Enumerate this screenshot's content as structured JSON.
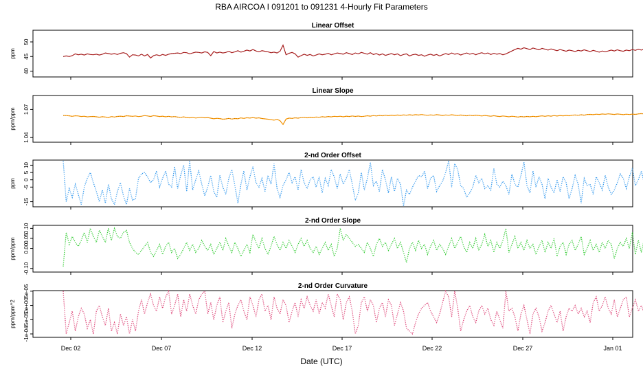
{
  "title": "RBA   AIRCOA I   091201 to 091231   4-Hourly Fit Parameters",
  "xlabel": "Date (UTC)",
  "x_ticks": [
    "Dec 02",
    "Dec 07",
    "Dec 12",
    "Dec 17",
    "Dec 22",
    "Dec 27",
    "Jan 01"
  ],
  "chart_data": [
    {
      "type": "line",
      "title": "Linear Offset",
      "ylabel": "ppm",
      "yticks": [
        "40",
        "45",
        "50"
      ],
      "ytick_values": [
        40,
        45,
        50
      ],
      "ylim": [
        38,
        54
      ],
      "color": "#b22222",
      "style": "solid",
      "x_start": "2009-12-01 14:00",
      "x_end": "2010-01-01 00:00",
      "x_step_hours": 4,
      "values": [
        45.0,
        45.2,
        45.0,
        45.3,
        45.9,
        45.6,
        45.8,
        45.5,
        45.9,
        45.7,
        45.6,
        45.8,
        45.5,
        45.8,
        46.2,
        46.0,
        45.8,
        46.0,
        45.7,
        46.1,
        46.3,
        46.0,
        44.8,
        45.6,
        45.5,
        45.2,
        45.8,
        45.2,
        45.7,
        44.5,
        45.3,
        45.6,
        45.3,
        45.7,
        45.4,
        45.8,
        46.0,
        46.1,
        46.2,
        46.0,
        46.4,
        46.3,
        45.9,
        46.2,
        46.5,
        46.4,
        46.2,
        46.6,
        46.4,
        45.3,
        46.7,
        46.2,
        46.5,
        46.2,
        46.4,
        46.8,
        46.3,
        46.6,
        47.0,
        46.5,
        46.8,
        47.2,
        46.9,
        47.4,
        46.9,
        46.6,
        47.0,
        46.8,
        46.6,
        46.3,
        46.5,
        46.2,
        46.8,
        48.9,
        45.6,
        46.1,
        46.4,
        45.9,
        44.8,
        45.3,
        45.8,
        45.4,
        45.7,
        45.2,
        45.5,
        45.9,
        45.6,
        45.8,
        46.1,
        45.6,
        45.9,
        46.2,
        46.0,
        45.8,
        46.3,
        46.0,
        45.7,
        46.2,
        45.9,
        46.4,
        46.1,
        45.8,
        46.3,
        45.7,
        46.0,
        45.5,
        45.9,
        45.4,
        45.7,
        46.0,
        45.6,
        45.9,
        45.3,
        45.7,
        45.9,
        45.2,
        45.6,
        45.8,
        45.4,
        45.6,
        45.1,
        45.5,
        45.8,
        45.4,
        45.7,
        45.2,
        45.6,
        46.0,
        45.7,
        46.2,
        45.8,
        46.0,
        45.5,
        45.9,
        46.2,
        45.8,
        46.1,
        45.6,
        46.0,
        46.3,
        45.9,
        46.2,
        45.7,
        46.1,
        45.8,
        46.0,
        45.6,
        45.9,
        46.4,
        46.9,
        47.4,
        47.8,
        47.5,
        48.0,
        47.7,
        47.4,
        47.9,
        47.6,
        47.3,
        47.8,
        47.5,
        47.2,
        47.6,
        47.3,
        47.0,
        47.4,
        47.1,
        46.8,
        47.2,
        47.0,
        46.7,
        47.1,
        46.9,
        47.3,
        47.0,
        46.7,
        47.1,
        46.8,
        46.5,
        46.9,
        46.6,
        46.9,
        47.2,
        46.9,
        47.3,
        47.0,
        46.8,
        47.2,
        47.0,
        47.4,
        47.1,
        47.5,
        47.2,
        47.6,
        47.3,
        47.7,
        47.8,
        47.5,
        47.9,
        47.6,
        47.8,
        47.4,
        47.7,
        47.3,
        47.6,
        47.2,
        46.8,
        47.1,
        46.9
      ]
    },
    {
      "type": "line",
      "title": "Linear Slope",
      "ylabel": "ppm/ppm",
      "yticks": [
        "1.04",
        "1.07"
      ],
      "ytick_values": [
        1.04,
        1.07
      ],
      "ylim": [
        1.035,
        1.085
      ],
      "color": "#ff9900",
      "style": "solid",
      "x_start": "2009-12-01 14:00",
      "x_end": "2010-01-01 00:00",
      "x_step_hours": 4,
      "values": [
        1.0636,
        1.0635,
        1.0632,
        1.0627,
        1.0633,
        1.0631,
        1.0625,
        1.0628,
        1.0621,
        1.0624,
        1.0626,
        1.0622,
        1.0618,
        1.0623,
        1.062,
        1.0615,
        1.0624,
        1.062,
        1.0626,
        1.0629,
        1.0625,
        1.0633,
        1.063,
        1.0627,
        1.0631,
        1.0624,
        1.0628,
        1.0635,
        1.0631,
        1.0626,
        1.0634,
        1.063,
        1.0625,
        1.0629,
        1.0622,
        1.0627,
        1.0621,
        1.0624,
        1.0619,
        1.0616,
        1.0621,
        1.0614,
        1.0611,
        1.0616,
        1.0609,
        1.0613,
        1.0617,
        1.0611,
        1.0614,
        1.0607,
        1.0601,
        1.0606,
        1.0603,
        1.0596,
        1.0599,
        1.0605,
        1.0598,
        1.0604,
        1.0601,
        1.061,
        1.0605,
        1.0612,
        1.0608,
        1.0614,
        1.0607,
        1.0611,
        1.0604,
        1.06,
        1.0596,
        1.0591,
        1.0586,
        1.0595,
        1.0581,
        1.054,
        1.0598,
        1.0608,
        1.0605,
        1.0611,
        1.0607,
        1.0613,
        1.0616,
        1.0611,
        1.0618,
        1.0614,
        1.062,
        1.0617,
        1.0623,
        1.0619,
        1.0625,
        1.0621,
        1.0627,
        1.0624,
        1.0628,
        1.0622,
        1.0629,
        1.0625,
        1.0631,
        1.0626,
        1.063,
        1.0624,
        1.0628,
        1.0633,
        1.0629,
        1.0635,
        1.0631,
        1.0637,
        1.0633,
        1.0639,
        1.0634,
        1.064,
        1.0636,
        1.0641,
        1.0637,
        1.0643,
        1.0639,
        1.0644,
        1.064,
        1.0645,
        1.0641,
        1.0646,
        1.0642,
        1.0638,
        1.0643,
        1.0639,
        1.0645,
        1.0641,
        1.0636,
        1.0642,
        1.0638,
        1.0644,
        1.064,
        1.0635,
        1.0641,
        1.0637,
        1.0633,
        1.0639,
        1.0634,
        1.064,
        1.0636,
        1.0631,
        1.0637,
        1.0632,
        1.0628,
        1.0634,
        1.0629,
        1.0625,
        1.0631,
        1.0627,
        1.0622,
        1.0628,
        1.0624,
        1.0619,
        1.0625,
        1.0621,
        1.0626,
        1.0622,
        1.0627,
        1.0623,
        1.0628,
        1.0632,
        1.0627,
        1.0633,
        1.0629,
        1.0635,
        1.063,
        1.0636,
        1.0632,
        1.0637,
        1.0633,
        1.0639,
        1.0642,
        1.0638,
        1.0644,
        1.064,
        1.0646,
        1.0648,
        1.0645,
        1.065,
        1.0647,
        1.0652,
        1.0649,
        1.0654,
        1.0651,
        1.0647,
        1.0652,
        1.0649,
        1.0645,
        1.065,
        1.0646,
        1.0651,
        1.0648,
        1.0653,
        1.0656,
        1.0652,
        1.0657,
        1.0653,
        1.0649,
        1.0654,
        1.065,
        1.0655,
        1.0668,
        1.0675,
        1.0678,
        1.0672,
        1.0676
      ]
    },
    {
      "type": "line",
      "title": "2-nd Order Offset",
      "ylabel": "ppm",
      "yticks": [
        "-15",
        "-5",
        "0",
        "5",
        "10"
      ],
      "ytick_values": [
        -15,
        -5,
        0,
        5,
        10
      ],
      "ylim": [
        -18.5,
        13.5
      ],
      "color": "#3399ee",
      "style": "dotted",
      "x_start": "2009-12-01 14:00",
      "x_end": "2010-01-01 00:00",
      "x_step_hours": 4,
      "values": [
        13,
        -15,
        -6,
        -12,
        -3,
        -10,
        -17,
        -5,
        1,
        5,
        -2,
        -8,
        -15,
        -7,
        -16,
        -3,
        -13,
        -17,
        -8,
        -2,
        -11,
        -17,
        -6,
        -14,
        -13,
        1,
        4,
        5,
        2,
        -2,
        0,
        6,
        -5,
        1,
        6,
        -3,
        -5,
        9,
        -6,
        3,
        10,
        -8,
        13,
        -7,
        0,
        6,
        -3,
        -11,
        -5,
        3,
        -8,
        -12,
        3,
        -5,
        -10,
        1,
        7,
        -4,
        -16,
        -3,
        6,
        -7,
        2,
        9,
        -2,
        -5,
        1,
        -8,
        3,
        -3,
        11,
        -6,
        -12,
        -4,
        0,
        5,
        -2,
        2,
        -7,
        7,
        -2,
        -6,
        0,
        2,
        -5,
        2,
        -9,
        1,
        -4,
        7,
        2,
        -6,
        4,
        -3,
        1,
        7,
        -3,
        -14,
        -9,
        5,
        -7,
        1,
        12,
        -4,
        -1,
        -8,
        7,
        0,
        -9,
        2,
        -8,
        1,
        -3,
        -18,
        -7,
        -10,
        -5,
        -1,
        3,
        2,
        6,
        -6,
        1,
        3,
        -8,
        -4,
        -1,
        5,
        13,
        -5,
        11,
        7,
        -4,
        -6,
        -12,
        -9,
        -5,
        3,
        -2,
        1,
        -6,
        -4,
        -7,
        8,
        -3,
        -5,
        -1,
        -4,
        -10,
        4,
        -3,
        -5,
        3,
        12,
        -4,
        -9,
        6,
        -5,
        2,
        -3,
        -13,
        1,
        -5,
        -9,
        0,
        -8,
        2,
        -2,
        -13,
        -6,
        3,
        -3,
        -16,
        1,
        -4,
        -3,
        -10,
        2,
        -2,
        -7,
        3,
        -5,
        -10,
        -7,
        -2,
        4,
        1,
        -6,
        2,
        8,
        -4,
        0,
        6,
        -3,
        -8,
        1,
        -5,
        7,
        -2,
        -9,
        -3,
        5,
        2,
        -3,
        6,
        0,
        4,
        -1,
        -6,
        0,
        3,
        -4,
        -7,
        6,
        10,
        -3,
        8,
        -1,
        -5,
        -10,
        -2,
        -7,
        -13,
        -4,
        -5
      ]
    },
    {
      "type": "line",
      "title": "2-nd Order Slope",
      "ylabel": "ppm/ppm",
      "yticks": [
        "-0.10",
        "0.00",
        "0.05",
        "0.10"
      ],
      "ytick_values": [
        -0.1,
        0.0,
        0.05,
        0.1
      ],
      "ylim": [
        -0.118,
        0.115
      ],
      "color": "#33cc33",
      "style": "dotted",
      "x_start": "2009-12-01 14:00",
      "x_end": "2010-01-01 00:00",
      "x_step_hours": 4,
      "values": [
        -0.09,
        0.08,
        0.02,
        0.06,
        0.03,
        0.01,
        0.04,
        0.08,
        0.03,
        0.1,
        0.06,
        0.03,
        0.09,
        0.06,
        0.03,
        0.1,
        0.04,
        0.1,
        0.06,
        0.05,
        0.08,
        0.09,
        0.03,
        0.0,
        -0.02,
        -0.03,
        -0.01,
        0.01,
        0.03,
        -0.02,
        -0.04,
        -0.01,
        0.02,
        -0.03,
        0.01,
        0.03,
        -0.02,
        0.0,
        -0.05,
        -0.03,
        0.0,
        0.03,
        -0.01,
        0.02,
        -0.02,
        0.0,
        0.04,
        0.01,
        -0.01,
        0.02,
        -0.03,
        0.0,
        0.03,
        -0.01,
        0.05,
        0.01,
        -0.02,
        0.03,
        0.0,
        -0.04,
        -0.01,
        0.02,
        -0.02,
        0.07,
        0.03,
        0.0,
        0.05,
        0.0,
        -0.03,
        0.01,
        0.06,
        0.02,
        -0.01,
        0.03,
        0.0,
        0.04,
        0.01,
        -0.02,
        0.02,
        0.05,
        0.01,
        0.04,
        0.0,
        -0.02,
        0.01,
        -0.03,
        0.0,
        0.03,
        -0.01,
        0.02,
        -0.04,
        0.0,
        0.1,
        0.04,
        0.07,
        0.05,
        0.03,
        0.01,
        0.02,
        0.0,
        -0.02,
        0.03,
        0.0,
        -0.04,
        0.02,
        0.05,
        0.01,
        0.03,
        -0.01,
        0.02,
        0.05,
        0.0,
        0.03,
        -0.02,
        -0.07,
        0.0,
        0.03,
        -0.01,
        0.04,
        0.0,
        0.02,
        -0.03,
        0.01,
        0.04,
        -0.01,
        0.02,
        0.0,
        -0.03,
        0.01,
        0.05,
        0.0,
        0.03,
        0.06,
        0.01,
        -0.02,
        0.03,
        0.0,
        0.05,
        -0.01,
        0.02,
        0.07,
        0.01,
        0.04,
        -0.02,
        0.03,
        0.0,
        0.04,
        0.1,
        -0.02,
        0.02,
        0.06,
        0.0,
        0.03,
        -0.01,
        0.04,
        0.0,
        0.02,
        -0.03,
        0.01,
        0.04,
        -0.02,
        0.03,
        0.0,
        0.05,
        -0.04,
        0.01,
        0.03,
        -0.03,
        0.02,
        0.04,
        -0.01,
        0.02,
        0.06,
        -0.03,
        0.0,
        0.04,
        -0.01,
        0.02,
        -0.02,
        0.03,
        0.0,
        0.04,
        0.02,
        -0.05,
        0.0,
        0.03,
        0.01,
        0.05,
        0.0,
        0.08,
        -0.03,
        0.04,
        -0.02,
        0.05,
        0.02,
        -0.01,
        0.03,
        0.0,
        0.04,
        0.01,
        -0.04,
        -0.01,
        0.02,
        -0.02,
        0.01,
        -0.03,
        -0.06,
        0.0,
        -0.07,
        0.05,
        0.03,
        0.06,
        0.03
      ]
    },
    {
      "type": "line",
      "title": "2-nd Order Curvature",
      "ylabel": "ppm/ppm^2",
      "yticks": [
        "-1e-04",
        "-5e-05",
        "0e+00",
        "5e-05"
      ],
      "ytick_values": [
        -0.0001,
        -5e-05,
        0,
        5e-05
      ],
      "ylim": [
        -0.000112,
        5.2e-05
      ],
      "color": "#dd4477",
      "style": "dotted",
      "x_start": "2009-12-01 14:00",
      "x_end": "2010-01-01 00:00",
      "x_step_hours": 4,
      "values": [
        5e-05,
        -0.0001,
        -6e-05,
        -2e-05,
        -9e-05,
        -4e-05,
        -1e-05,
        -3e-05,
        -8e-05,
        -5e-05,
        -0.0001,
        -2e-05,
        0.0,
        -4e-05,
        -7e-05,
        -1e-05,
        -9e-05,
        -6e-05,
        -0.0001,
        -3e-05,
        -7e-05,
        -4e-05,
        -0.0001,
        -5e-05,
        -9e-05,
        -2e-05,
        2e-05,
        -3e-05,
        1e-05,
        4e-05,
        0.0,
        -2e-05,
        3e-05,
        -1e-05,
        3e-05,
        5e-05,
        -3e-05,
        0.0,
        4e-05,
        -4e-05,
        2e-05,
        -2e-05,
        4e-05,
        0.0,
        -3e-05,
        2e-05,
        4e-05,
        5e-05,
        -3e-05,
        1e-05,
        -5e-05,
        0.0,
        3e-05,
        -6e-05,
        -2e-05,
        1e-05,
        -8e-05,
        -3e-05,
        0.0,
        2e-05,
        -2e-05,
        -5e-05,
        3e-05,
        0.0,
        -4e-05,
        2e-05,
        4e-05,
        -2e-05,
        0.0,
        -5e-05,
        3e-05,
        -1e-05,
        -3e-05,
        2e-05,
        0.0,
        -6e-05,
        -2e-05,
        1e-05,
        -4e-05,
        2e-05,
        -1e-05,
        3e-05,
        0.0,
        -2e-05,
        2e-05,
        -3e-05,
        1e-05,
        -1e-05,
        4e-05,
        0.0,
        -4e-05,
        4e-05,
        2e-05,
        -5e-05,
        1e-05,
        3e-05,
        -2e-05,
        -0.0001,
        -7e-05,
        1e-05,
        3e-05,
        -2e-05,
        2e-05,
        0.0,
        -6e-05,
        -1e-05,
        1e-05,
        -4e-05,
        2e-05,
        0.0,
        -7e-05,
        -3e-05,
        1e-05,
        -2e-05,
        -8e-05,
        -9e-05,
        -0.0001,
        -6e-05,
        -3e-05,
        -1e-05,
        0.0,
        1e-05,
        -2e-05,
        -4e-05,
        -6e-05,
        -3e-05,
        1e-05,
        5e-05,
        3e-05,
        -4e-05,
        5e-05,
        -1e-05,
        -9e-05,
        -5e-05,
        -2e-05,
        0.0,
        -4e-05,
        -6e-05,
        -2e-05,
        0.0,
        -3e-05,
        -1e-05,
        -5e-05,
        -7e-05,
        -2e-05,
        -5e-05,
        -8e-05,
        5e-05,
        -2e-05,
        -1e-05,
        -4e-05,
        -9e-05,
        -3e-05,
        0.0,
        -5e-05,
        -0.0001,
        -3e-05,
        -1e-05,
        -4e-05,
        -9e-05,
        -6e-05,
        -2e-05,
        0.0,
        -3e-05,
        -6e-05,
        -2e-05,
        -9e-05,
        -4e-05,
        -1e-05,
        -2e-05,
        0.0,
        -3e-05,
        -1e-05,
        -4e-05,
        -2e-05,
        -6e-05,
        1e-05,
        3e-05,
        -2e-05,
        0.0,
        3e-05,
        -1e-05,
        -3e-05,
        2e-05,
        -4e-05,
        -1e-05,
        2e-05,
        3e-05,
        -4e-05,
        -1e-05,
        2e-05,
        -2e-05,
        0.0,
        -3e-05,
        1e-05,
        -2e-05,
        2e-05,
        -1e-05,
        -4e-05,
        1e-05,
        5e-05,
        3e-05,
        0.0,
        2e-05,
        4e-05,
        5e-05,
        -2e-05,
        0.0,
        -4e-05,
        -1e-05,
        -6e-05,
        -3e-05,
        -0.0001,
        -5e-05,
        -2e-05
      ]
    }
  ]
}
